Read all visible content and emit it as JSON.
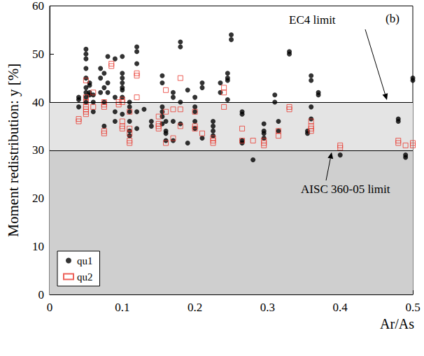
{
  "chart_data": {
    "type": "scatter",
    "xlabel": "Ar/As",
    "ylabel": "Moment redistribution: y [%]",
    "xlim": [
      0,
      0.5
    ],
    "xticks": [
      0,
      0.1,
      0.2,
      0.3,
      0.4,
      0.5
    ],
    "ylim": [
      0,
      60
    ],
    "yticks": [
      0,
      10,
      20,
      30,
      40,
      50,
      60
    ],
    "grid": false,
    "legend": "lower left",
    "annotations": [
      {
        "text": "EC4 limit",
        "y": 40
      },
      {
        "text": "AISC 360-05 limit",
        "y": 30
      },
      {
        "text": "(b)"
      }
    ],
    "series": [
      {
        "name": "qu1",
        "color": "#000000",
        "marker": "circle",
        "x": [
          0.04,
          0.04,
          0.04,
          0.05,
          0.05,
          0.05,
          0.05,
          0.05,
          0.05,
          0.05,
          0.05,
          0.05,
          0.055,
          0.055,
          0.055,
          0.055,
          0.06,
          0.06,
          0.06,
          0.07,
          0.07,
          0.07,
          0.075,
          0.075,
          0.075,
          0.075,
          0.08,
          0.08,
          0.08,
          0.09,
          0.09,
          0.09,
          0.09,
          0.1,
          0.1,
          0.1,
          0.1,
          0.1,
          0.1,
          0.1,
          0.1,
          0.11,
          0.11,
          0.11,
          0.11,
          0.11,
          0.11,
          0.12,
          0.12,
          0.12,
          0.12,
          0.12,
          0.13,
          0.14,
          0.14,
          0.155,
          0.155,
          0.155,
          0.155,
          0.155,
          0.155,
          0.16,
          0.16,
          0.16,
          0.16,
          0.17,
          0.17,
          0.17,
          0.17,
          0.18,
          0.18,
          0.18,
          0.18,
          0.19,
          0.19,
          0.2,
          0.2,
          0.2,
          0.2,
          0.2,
          0.21,
          0.21,
          0.21,
          0.225,
          0.225,
          0.225,
          0.225,
          0.235,
          0.235,
          0.245,
          0.245,
          0.245,
          0.245,
          0.25,
          0.25,
          0.265,
          0.265,
          0.265,
          0.265,
          0.28,
          0.295,
          0.295,
          0.295,
          0.295,
          0.31,
          0.31,
          0.315,
          0.315,
          0.33,
          0.33,
          0.355,
          0.355,
          0.36,
          0.36,
          0.36,
          0.36,
          0.37,
          0.37,
          0.4,
          0.48,
          0.48,
          0.49,
          0.49,
          0.5,
          0.5
        ],
        "values": [
          40.5,
          39,
          41,
          42,
          43,
          45,
          47,
          49,
          51,
          50,
          41,
          40,
          44,
          42,
          43.5,
          41.5,
          40,
          41.5,
          38,
          42,
          45,
          47,
          46,
          43,
          35,
          40,
          49.5,
          42,
          44,
          49,
          38,
          41,
          36,
          45,
          46,
          43,
          44,
          41,
          49.5,
          42.5,
          37.5,
          40,
          38,
          36,
          34,
          33,
          39,
          50.5,
          51.5,
          48,
          38,
          34.5,
          38.5,
          36,
          35,
          45.5,
          44,
          39,
          37,
          38,
          35.5,
          32,
          33.5,
          36,
          34,
          42,
          41,
          36,
          32,
          52.5,
          51.5,
          40,
          35.5,
          31.5,
          42.5,
          41,
          39,
          38,
          36,
          34.5,
          44,
          43,
          32.5,
          36,
          35,
          34,
          33,
          42,
          44,
          45,
          46,
          40.5,
          44.5,
          54,
          53,
          37.5,
          38,
          31.5,
          32,
          28,
          35.5,
          34,
          33.5,
          32.5,
          41.5,
          40,
          36,
          34,
          50.5,
          50,
          33.5,
          34,
          45.5,
          44.5,
          39,
          36.5,
          42,
          41.5,
          29,
          36.5,
          36,
          29,
          28.5,
          45,
          44.5
        ]
      },
      {
        "name": "qu2",
        "color": "#e8392f",
        "marker": "square-open",
        "x": [
          0.04,
          0.04,
          0.05,
          0.05,
          0.05,
          0.05,
          0.05,
          0.05,
          0.05,
          0.06,
          0.06,
          0.075,
          0.075,
          0.075,
          0.075,
          0.075,
          0.085,
          0.085,
          0.095,
          0.095,
          0.1,
          0.1,
          0.1,
          0.1,
          0.1,
          0.11,
          0.11,
          0.11,
          0.11,
          0.11,
          0.12,
          0.12,
          0.12,
          0.15,
          0.15,
          0.15,
          0.15,
          0.16,
          0.16,
          0.16,
          0.17,
          0.17,
          0.18,
          0.18,
          0.18,
          0.2,
          0.2,
          0.2,
          0.21,
          0.225,
          0.225,
          0.225,
          0.24,
          0.24,
          0.24,
          0.265,
          0.265,
          0.28,
          0.295,
          0.295,
          0.295,
          0.315,
          0.315,
          0.33,
          0.33,
          0.36,
          0.36,
          0.36,
          0.36,
          0.4,
          0.4,
          0.48,
          0.48,
          0.49,
          0.5,
          0.5
        ],
        "values": [
          36.5,
          36,
          39,
          38,
          37.5,
          38.5,
          41,
          44.5,
          40,
          42,
          39,
          39.5,
          39,
          40,
          33.5,
          34,
          47.5,
          48,
          40,
          39.5,
          40.5,
          40,
          36,
          35,
          34.5,
          34.5,
          38,
          33.5,
          32,
          31.5,
          41,
          46,
          45.5,
          35,
          35.5,
          34.5,
          37,
          42.5,
          38,
          31.5,
          38.5,
          32.5,
          45,
          38.5,
          35,
          35,
          34.5,
          38,
          33.5,
          32.5,
          32,
          31.5,
          39,
          42,
          43,
          34.5,
          32,
          32,
          32,
          31.5,
          31,
          33,
          34,
          38.5,
          39,
          36,
          35,
          34.5,
          34,
          30.5,
          31,
          32,
          31.5,
          31,
          31.5,
          31
        ]
      }
    ]
  }
}
